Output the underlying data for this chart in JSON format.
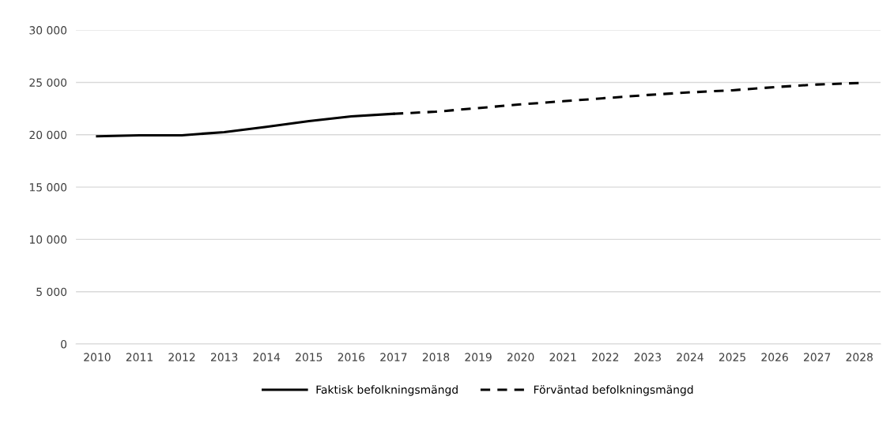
{
  "chart_data": {
    "type": "line",
    "categories": [
      "2010",
      "2011",
      "2012",
      "2013",
      "2014",
      "2015",
      "2016",
      "2017",
      "2018",
      "2019",
      "2020",
      "2021",
      "2022",
      "2023",
      "2024",
      "2025",
      "2026",
      "2027",
      "2028"
    ],
    "series": [
      {
        "name": "Faktisk befolkningsmängd",
        "color": "#000000",
        "line_style": "solid",
        "values": [
          19850,
          19950,
          19950,
          20250,
          20750,
          21300,
          21750,
          22000,
          null,
          null,
          null,
          null,
          null,
          null,
          null,
          null,
          null,
          null,
          null
        ]
      },
      {
        "name": "Förväntad befolkningsmängd",
        "color": "#000000",
        "line_style": "dashed",
        "values": [
          null,
          null,
          null,
          null,
          null,
          null,
          null,
          22000,
          22200,
          22550,
          22900,
          23200,
          23500,
          23800,
          24050,
          24250,
          24550,
          24800,
          24950
        ]
      }
    ],
    "ylim": [
      0,
      30000
    ],
    "yticks": [
      {
        "value": 0,
        "label": "0"
      },
      {
        "value": 5000,
        "label": "5 000"
      },
      {
        "value": 10000,
        "label": "10 000"
      },
      {
        "value": 15000,
        "label": "15 000"
      },
      {
        "value": 20000,
        "label": "20 000"
      },
      {
        "value": 25000,
        "label": "25 000"
      },
      {
        "value": 30000,
        "label": "30 000"
      }
    ],
    "grid": "y",
    "legend": "bottom",
    "marker": "none"
  }
}
